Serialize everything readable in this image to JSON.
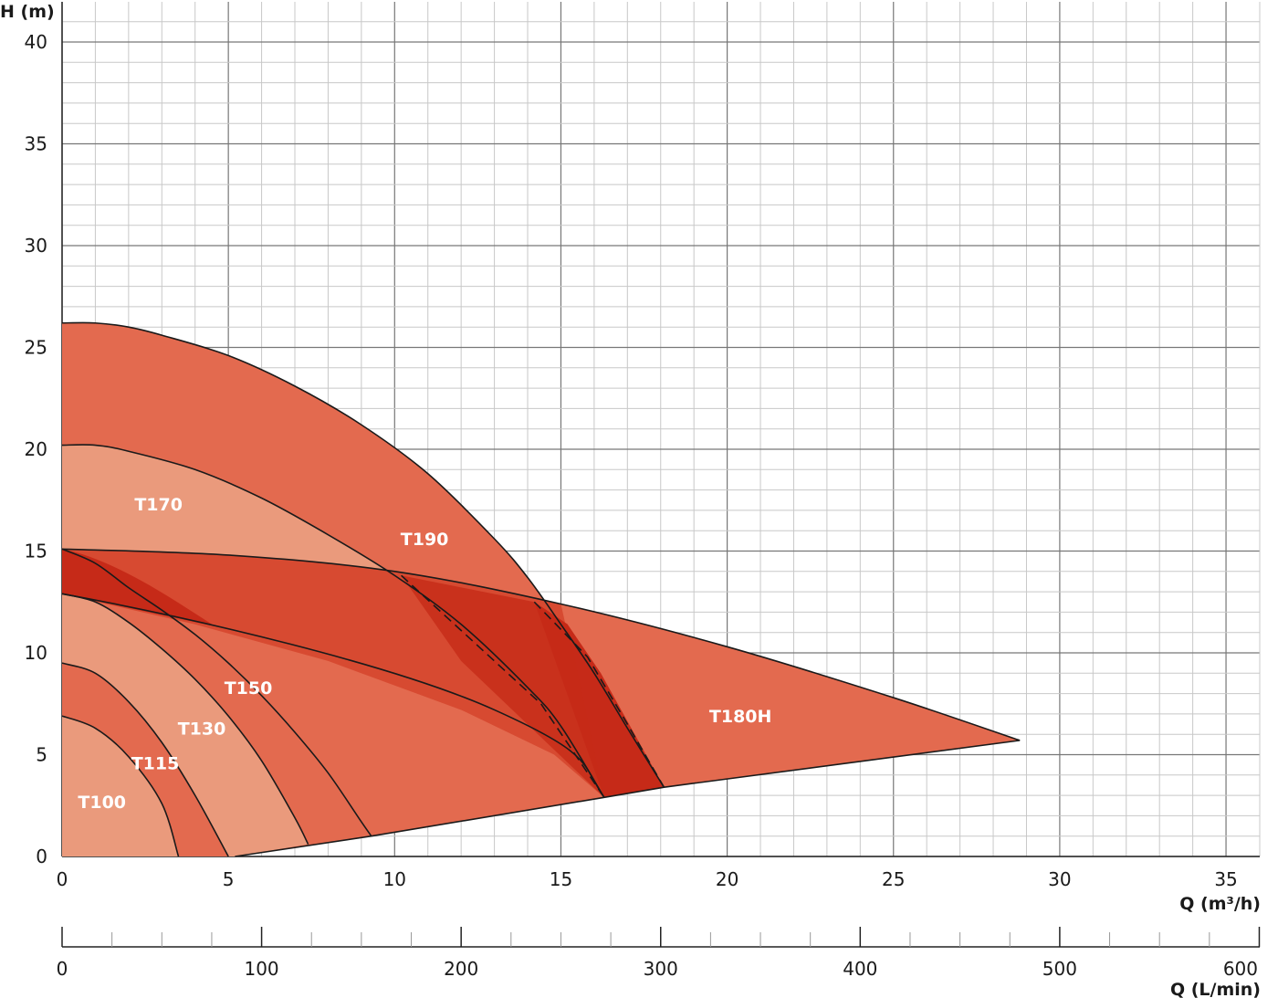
{
  "chart_data": {
    "type": "area",
    "title": "",
    "xlabel": "Q (m³/h)",
    "ylabel": "H (m)",
    "xlim": [
      0,
      35.7
    ],
    "ylim": [
      0,
      42
    ],
    "x_ticks": [
      "0",
      "5",
      "10",
      "15",
      "20",
      "25",
      "30",
      "35"
    ],
    "y_ticks": [
      "0",
      "5",
      "10",
      "15",
      "20",
      "25",
      "30",
      "35",
      "40"
    ],
    "secondary_x_axis": {
      "label": "Q (L/min)",
      "range": [
        0,
        600
      ],
      "ticks": [
        "0",
        "100",
        "200",
        "300",
        "400",
        "500",
        "600"
      ]
    },
    "grid": true,
    "colors": {
      "light": "#ea9a7c",
      "medium": "#e36a4f",
      "dark": "#d5442b",
      "darkest": "#c62a18",
      "outline": "#1a1a1a",
      "grid_major": "#777777",
      "grid_minor": "#c8c8c8"
    },
    "series": [
      {
        "name": "T100",
        "curve": [
          [
            0,
            6.9
          ],
          [
            1,
            6.3
          ],
          [
            2,
            4.9
          ],
          [
            3,
            2.6
          ],
          [
            3.5,
            0
          ]
        ]
      },
      {
        "name": "T115",
        "curve": [
          [
            0,
            9.5
          ],
          [
            1,
            9.0
          ],
          [
            2,
            7.6
          ],
          [
            3,
            5.6
          ],
          [
            4,
            3.0
          ],
          [
            5,
            0
          ]
        ]
      },
      {
        "name": "T130",
        "curve": [
          [
            0,
            12.9
          ],
          [
            1,
            12.5
          ],
          [
            2,
            11.5
          ],
          [
            3,
            10.2
          ],
          [
            4,
            8.7
          ],
          [
            5,
            6.9
          ],
          [
            6,
            4.7
          ],
          [
            7,
            1.9
          ],
          [
            7.4,
            0.6
          ]
        ]
      },
      {
        "name": "T150",
        "curve": [
          [
            0,
            15.1
          ],
          [
            1,
            14.4
          ],
          [
            2,
            13.2
          ],
          [
            3,
            12.1
          ],
          [
            4,
            10.9
          ],
          [
            5,
            9.5
          ],
          [
            6,
            7.9
          ],
          [
            7,
            6.1
          ],
          [
            8,
            4.1
          ],
          [
            9,
            1.7
          ],
          [
            9.3,
            1.0
          ]
        ]
      },
      {
        "name": "T170",
        "curve": [
          [
            0,
            20.2
          ],
          [
            1,
            20.2
          ],
          [
            2,
            19.9
          ],
          [
            4,
            19.0
          ],
          [
            6,
            17.6
          ],
          [
            8,
            15.8
          ],
          [
            10,
            13.8
          ],
          [
            12,
            11.4
          ],
          [
            14,
            8.3
          ],
          [
            15,
            6.4
          ],
          [
            16.3,
            2.9
          ]
        ]
      },
      {
        "name": "T190",
        "curve": [
          [
            0,
            26.2
          ],
          [
            1,
            26.2
          ],
          [
            2,
            26.0
          ],
          [
            3,
            25.6
          ],
          [
            5,
            24.6
          ],
          [
            7,
            23.1
          ],
          [
            9,
            21.2
          ],
          [
            11,
            18.8
          ],
          [
            13,
            15.6
          ],
          [
            14,
            13.7
          ],
          [
            15,
            11.4
          ],
          [
            16,
            9.0
          ],
          [
            17,
            6.3
          ],
          [
            18.1,
            3.4
          ]
        ]
      },
      {
        "name": "T180H",
        "curve": [
          [
            0,
            15.1
          ],
          [
            5,
            14.8
          ],
          [
            10,
            14.0
          ],
          [
            15,
            12.4
          ],
          [
            20,
            10.3
          ],
          [
            25,
            7.8
          ],
          [
            28.8,
            5.7
          ]
        ]
      }
    ],
    "system_line": [
      [
        5.2,
        0
      ],
      [
        9.3,
        1.0
      ],
      [
        16.3,
        2.9
      ],
      [
        18.1,
        3.4
      ],
      [
        28.8,
        5.7
      ]
    ],
    "label_points": [
      {
        "name": "T100",
        "x": 1.2,
        "y": 2.7
      },
      {
        "name": "T115",
        "x": 2.8,
        "y": 4.6
      },
      {
        "name": "T130",
        "x": 4.2,
        "y": 6.3
      },
      {
        "name": "T150",
        "x": 5.6,
        "y": 8.3
      },
      {
        "name": "T170",
        "x": 2.9,
        "y": 17.3
      },
      {
        "name": "T190",
        "x": 10.9,
        "y": 15.6
      },
      {
        "name": "T180H",
        "x": 20.4,
        "y": 6.9
      }
    ]
  }
}
